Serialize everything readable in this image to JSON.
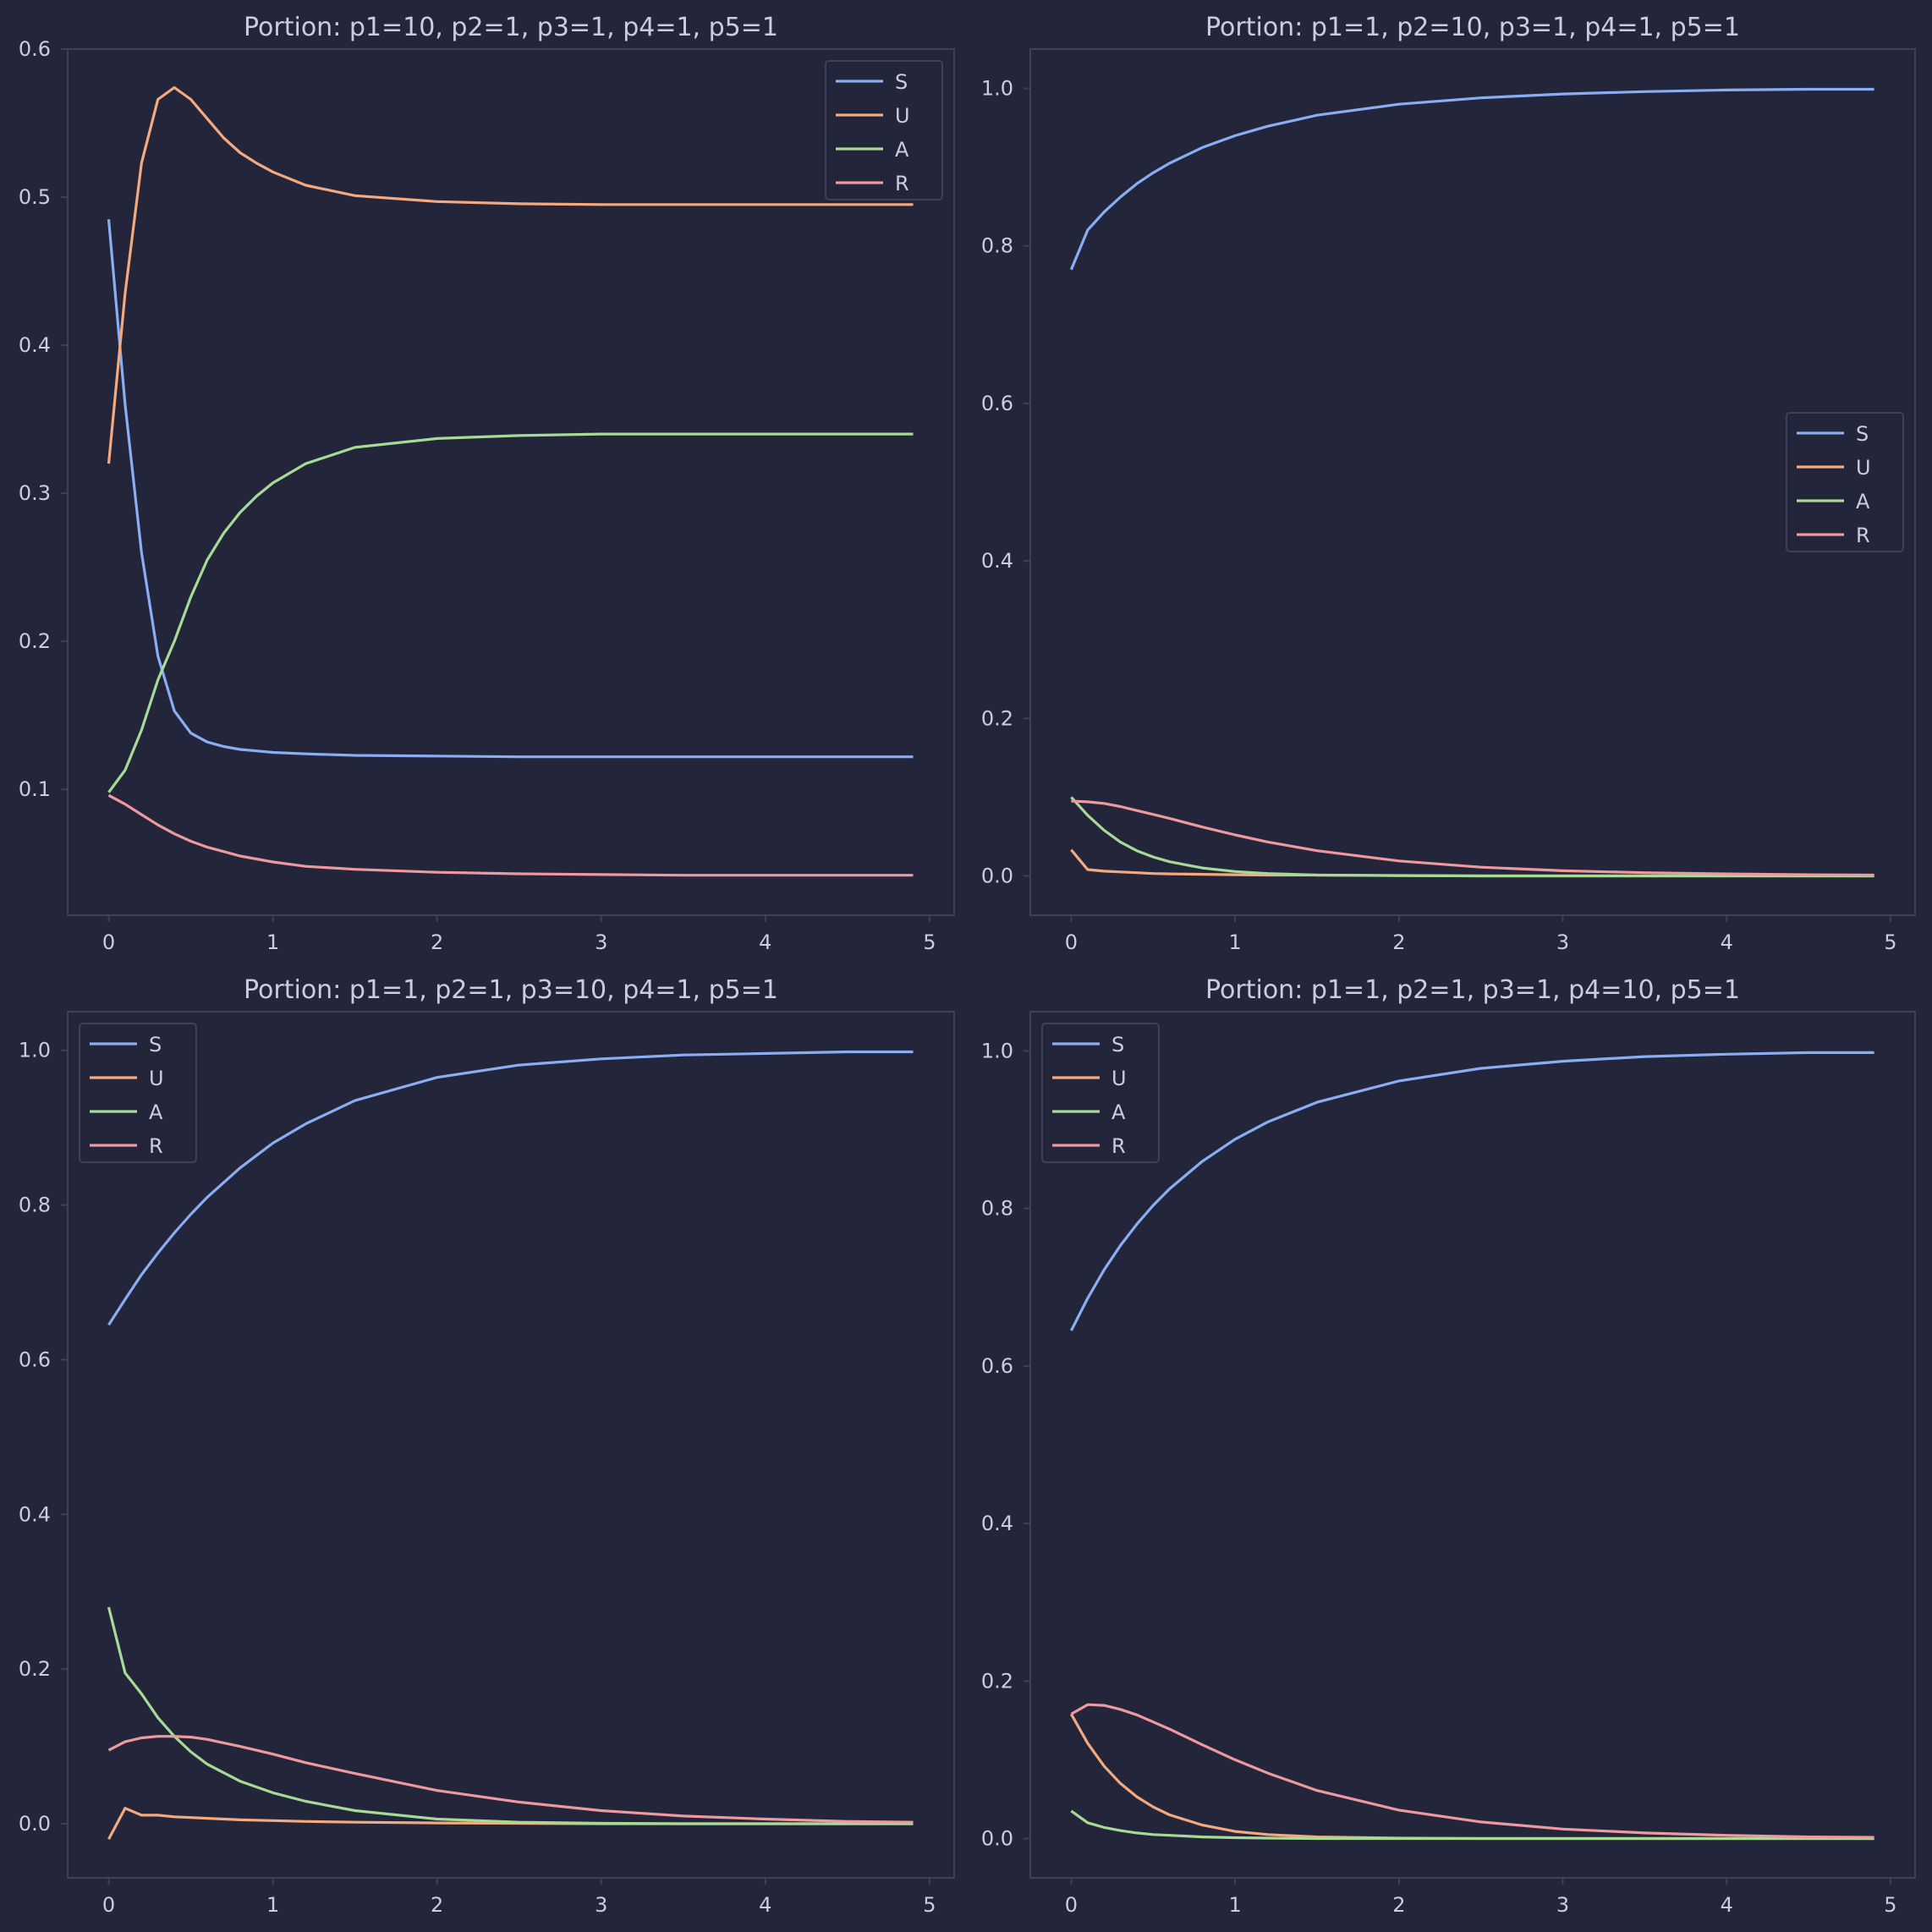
{
  "colors": {
    "background": "#23263a",
    "frame": "#3c4058",
    "text": "#c8cde4",
    "series": {
      "S": "#8aadf4",
      "U": "#f5a97f",
      "A": "#a6da95",
      "R": "#ee99a0"
    }
  },
  "chart_data": [
    {
      "type": "line",
      "title": "Portion: p1=10, p2=1, p3=1, p4=1, p5=1",
      "xlim": [
        -0.25,
        5.15
      ],
      "ylim": [
        0.015,
        0.6
      ],
      "xticks": [
        "0",
        "1",
        "2",
        "3",
        "4",
        "5"
      ],
      "yticks": [
        "0.1",
        "0.2",
        "0.3",
        "0.4",
        "0.5",
        "0.6"
      ],
      "legend": "upper right",
      "x": [
        0,
        0.1,
        0.2,
        0.3,
        0.4,
        0.5,
        0.6,
        0.7,
        0.8,
        0.9,
        1.0,
        1.2,
        1.5,
        2.0,
        2.5,
        3.0,
        3.5,
        4.0,
        4.5,
        4.9
      ],
      "series": [
        {
          "name": "S",
          "values": [
            0.485,
            0.36,
            0.26,
            0.19,
            0.153,
            0.138,
            0.132,
            0.129,
            0.127,
            0.126,
            0.125,
            0.124,
            0.123,
            0.1225,
            0.122,
            0.122,
            0.122,
            0.122,
            0.122,
            0.122
          ]
        },
        {
          "name": "U",
          "values": [
            0.32,
            0.435,
            0.523,
            0.566,
            0.574,
            0.566,
            0.553,
            0.54,
            0.53,
            0.523,
            0.517,
            0.508,
            0.501,
            0.497,
            0.4955,
            0.495,
            0.495,
            0.495,
            0.495,
            0.495
          ]
        },
        {
          "name": "A",
          "values": [
            0.098,
            0.113,
            0.14,
            0.174,
            0.2,
            0.23,
            0.255,
            0.273,
            0.287,
            0.298,
            0.307,
            0.32,
            0.331,
            0.337,
            0.339,
            0.34,
            0.34,
            0.34,
            0.34,
            0.34
          ]
        },
        {
          "name": "R",
          "values": [
            0.096,
            0.09,
            0.083,
            0.076,
            0.07,
            0.065,
            0.061,
            0.058,
            0.055,
            0.053,
            0.051,
            0.048,
            0.046,
            0.044,
            0.043,
            0.0425,
            0.042,
            0.042,
            0.042,
            0.042
          ]
        }
      ]
    },
    {
      "type": "line",
      "title": "Portion: p1=1, p2=10, p3=1, p4=1, p5=1",
      "xlim": [
        -0.25,
        5.15
      ],
      "ylim": [
        -0.05,
        1.05
      ],
      "xticks": [
        "0",
        "1",
        "2",
        "3",
        "4",
        "5"
      ],
      "yticks": [
        "0.0",
        "0.2",
        "0.4",
        "0.6",
        "0.8",
        "1.0"
      ],
      "legend": "center right",
      "x": [
        0,
        0.1,
        0.2,
        0.3,
        0.4,
        0.5,
        0.6,
        0.8,
        1.0,
        1.2,
        1.5,
        2.0,
        2.5,
        3.0,
        3.5,
        4.0,
        4.5,
        4.9
      ],
      "series": [
        {
          "name": "S",
          "values": [
            0.77,
            0.82,
            0.843,
            0.862,
            0.879,
            0.893,
            0.905,
            0.925,
            0.94,
            0.952,
            0.966,
            0.98,
            0.988,
            0.993,
            0.996,
            0.998,
            0.999,
            0.999
          ]
        },
        {
          "name": "U",
          "values": [
            0.033,
            0.008,
            0.006,
            0.005,
            0.004,
            0.003,
            0.0025,
            0.002,
            0.0015,
            0.001,
            0.001,
            0.0005,
            0,
            0,
            0,
            0,
            0,
            0
          ]
        },
        {
          "name": "A",
          "values": [
            0.1,
            0.077,
            0.058,
            0.043,
            0.032,
            0.024,
            0.018,
            0.01,
            0.0055,
            0.003,
            0.001,
            0.0003,
            0,
            0,
            0,
            0,
            0,
            0
          ]
        },
        {
          "name": "R",
          "values": [
            0.095,
            0.094,
            0.092,
            0.088,
            0.083,
            0.078,
            0.073,
            0.062,
            0.052,
            0.043,
            0.032,
            0.019,
            0.011,
            0.0065,
            0.004,
            0.0025,
            0.0015,
            0.001
          ]
        }
      ]
    },
    {
      "type": "line",
      "title": "Portion: p1=1, p2=1, p3=10, p4=1, p5=1",
      "xlim": [
        -0.25,
        5.15
      ],
      "ylim": [
        -0.07,
        1.05
      ],
      "xticks": [
        "0",
        "1",
        "2",
        "3",
        "4",
        "5"
      ],
      "yticks": [
        "0.0",
        "0.2",
        "0.4",
        "0.6",
        "0.8",
        "1.0"
      ],
      "legend": "upper left",
      "x": [
        0,
        0.1,
        0.2,
        0.3,
        0.4,
        0.5,
        0.6,
        0.8,
        1.0,
        1.2,
        1.5,
        2.0,
        2.5,
        3.0,
        3.5,
        4.0,
        4.5,
        4.9
      ],
      "series": [
        {
          "name": "S",
          "values": [
            0.645,
            0.678,
            0.71,
            0.738,
            0.764,
            0.788,
            0.81,
            0.848,
            0.88,
            0.905,
            0.935,
            0.965,
            0.981,
            0.989,
            0.994,
            0.996,
            0.998,
            0.998
          ]
        },
        {
          "name": "U",
          "values": [
            -0.02,
            0.02,
            0.011,
            0.011,
            0.009,
            0.008,
            0.007,
            0.005,
            0.004,
            0.003,
            0.002,
            0.001,
            0.0005,
            0,
            0,
            0,
            0,
            0
          ]
        },
        {
          "name": "A",
          "values": [
            0.28,
            0.195,
            0.168,
            0.137,
            0.113,
            0.093,
            0.077,
            0.055,
            0.04,
            0.029,
            0.017,
            0.006,
            0.002,
            0.0006,
            0,
            0,
            0,
            0
          ]
        },
        {
          "name": "R",
          "values": [
            0.095,
            0.106,
            0.111,
            0.113,
            0.113,
            0.112,
            0.109,
            0.1,
            0.09,
            0.079,
            0.065,
            0.043,
            0.028,
            0.017,
            0.01,
            0.006,
            0.003,
            0.002
          ]
        }
      ]
    },
    {
      "type": "line",
      "title": "Portion: p1=1, p2=1, p3=1, p4=10, p5=1",
      "xlim": [
        -0.25,
        5.15
      ],
      "ylim": [
        -0.05,
        1.05
      ],
      "xticks": [
        "0",
        "1",
        "2",
        "3",
        "4",
        "5"
      ],
      "yticks": [
        "0.0",
        "0.2",
        "0.4",
        "0.6",
        "0.8",
        "1.0"
      ],
      "legend": "upper left",
      "x": [
        0,
        0.1,
        0.2,
        0.3,
        0.4,
        0.5,
        0.6,
        0.8,
        1.0,
        1.2,
        1.5,
        2.0,
        2.5,
        3.0,
        3.5,
        4.0,
        4.5,
        4.9
      ],
      "series": [
        {
          "name": "S",
          "values": [
            0.645,
            0.686,
            0.722,
            0.753,
            0.78,
            0.804,
            0.825,
            0.86,
            0.888,
            0.91,
            0.935,
            0.962,
            0.978,
            0.987,
            0.993,
            0.996,
            0.998,
            0.998
          ]
        },
        {
          "name": "U",
          "values": [
            0.158,
            0.121,
            0.092,
            0.07,
            0.053,
            0.04,
            0.03,
            0.017,
            0.009,
            0.005,
            0.002,
            0.0005,
            0,
            0,
            0,
            0,
            0,
            0
          ]
        },
        {
          "name": "A",
          "values": [
            0.035,
            0.02,
            0.014,
            0.01,
            0.007,
            0.005,
            0.004,
            0.002,
            0.001,
            0.0005,
            0,
            0,
            0,
            0,
            0,
            0,
            0,
            0
          ]
        },
        {
          "name": "R",
          "values": [
            0.158,
            0.17,
            0.169,
            0.164,
            0.157,
            0.148,
            0.139,
            0.119,
            0.1,
            0.083,
            0.061,
            0.036,
            0.021,
            0.012,
            0.007,
            0.004,
            0.002,
            0.0015
          ]
        }
      ]
    }
  ]
}
